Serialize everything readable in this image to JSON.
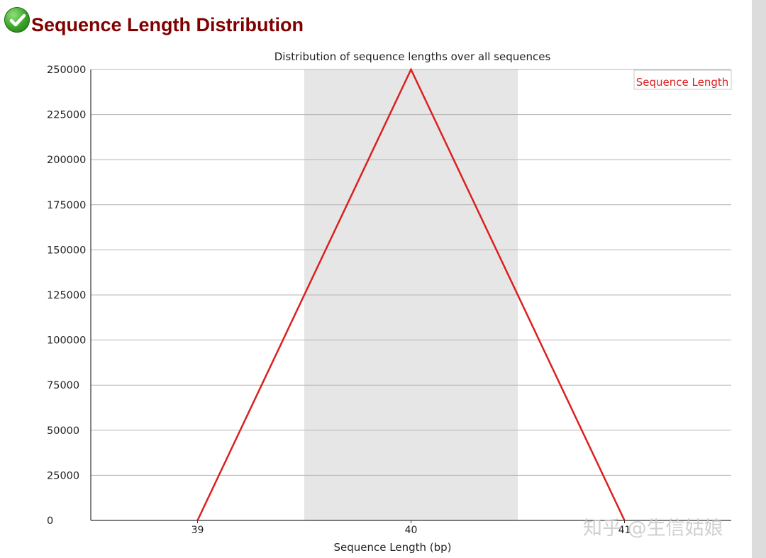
{
  "header": {
    "status_icon": "check-circle-icon",
    "status": "pass",
    "title": "Sequence Length Distribution"
  },
  "watermark": "知乎 @生信姑娘",
  "chart_data": {
    "type": "line",
    "title": "Distribution of sequence lengths over all sequences",
    "xlabel": "Sequence Length (bp)",
    "ylabel": "",
    "categories": [
      "39",
      "40",
      "41"
    ],
    "series": [
      {
        "name": "Sequence Length",
        "x": [
          "39",
          "40",
          "41"
        ],
        "values": [
          0,
          250000,
          0
        ],
        "color": "#dc1f1f"
      }
    ],
    "ylim": [
      0,
      250000
    ],
    "yticks": [
      "0",
      "25000",
      "50000",
      "75000",
      "100000",
      "125000",
      "150000",
      "175000",
      "200000",
      "225000",
      "250000"
    ],
    "xticks": [
      "39",
      "40",
      "41"
    ],
    "grid": true,
    "legend": "top-right",
    "band_color": "#e6e6e6"
  }
}
